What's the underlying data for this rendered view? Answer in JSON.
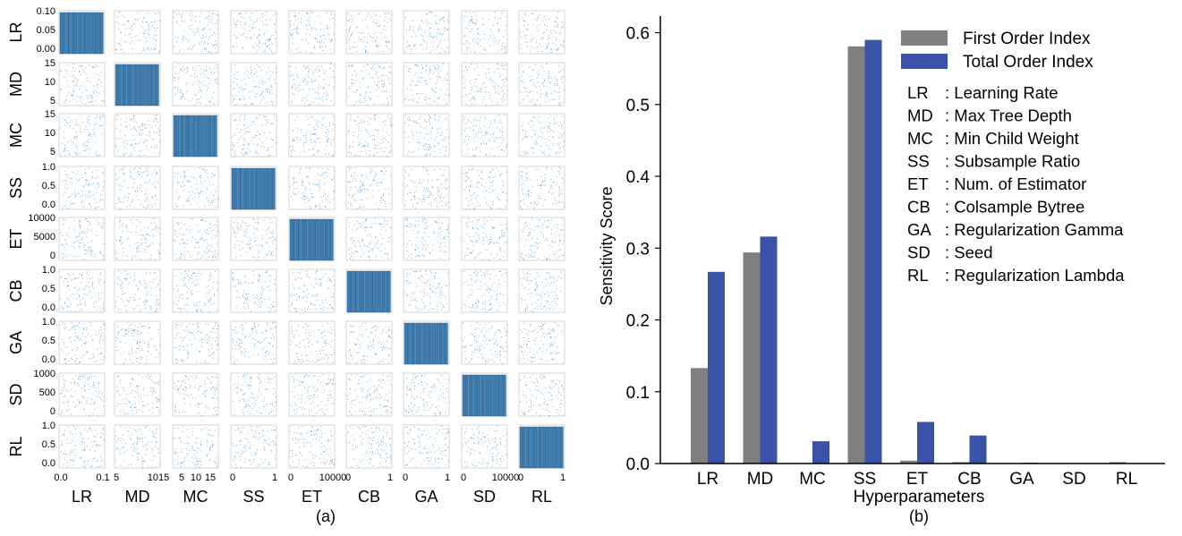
{
  "chart_data": [
    {
      "type": "scatter",
      "panel_label": "(a)",
      "variables": [
        "LR",
        "MD",
        "MC",
        "SS",
        "ET",
        "CB",
        "GA",
        "SD",
        "RL"
      ],
      "diagonal": "histogram",
      "point_color": "#1f77b4",
      "bar_color": "#3b7fb5",
      "y_tick_labels": {
        "LR": [
          "0.10",
          "0.05",
          "0.00"
        ],
        "MD": [
          "15",
          "10",
          "5"
        ],
        "MC": [
          "15",
          "10",
          "5"
        ],
        "SS": [
          "1.0",
          "0.5",
          "0.0"
        ],
        "ET": [
          "10000",
          "5000",
          "0"
        ],
        "CB": [
          "1.0",
          "0.5",
          "0.0"
        ],
        "GA": [
          "1.0",
          "0.5",
          "0.0"
        ],
        "SD": [
          "1000",
          "500",
          "0"
        ],
        "RL": [
          "1.0",
          "0.5",
          "0.0"
        ]
      },
      "x_tick_labels": {
        "LR": [
          "0.0",
          "0.1"
        ],
        "MD": [
          "5",
          "1015"
        ],
        "MC": [
          "5",
          "10",
          "15"
        ],
        "SS": [
          "0",
          "1"
        ],
        "ET": [
          "0",
          "10000"
        ],
        "CB": [
          "0",
          "1"
        ],
        "GA": [
          "0",
          "1"
        ],
        "SD": [
          "0",
          "10000"
        ],
        "RL": [
          "0",
          "1"
        ]
      },
      "ranges": {
        "LR": [
          0,
          0.1
        ],
        "MD": [
          1,
          18
        ],
        "MC": [
          1,
          18
        ],
        "SS": [
          0,
          1
        ],
        "ET": [
          0,
          10000
        ],
        "CB": [
          0,
          1
        ],
        "GA": [
          0,
          1
        ],
        "SD": [
          0,
          1000
        ],
        "RL": [
          0,
          1
        ]
      }
    },
    {
      "type": "bar",
      "panel_label": "(b)",
      "categories": [
        "LR",
        "MD",
        "MC",
        "SS",
        "ET",
        "CB",
        "GA",
        "SD",
        "RL"
      ],
      "series": [
        {
          "name": "First Order Index",
          "color": "#808080",
          "values": [
            0.133,
            0.294,
            0.0,
            0.581,
            0.004,
            0.002,
            0.0,
            0.0,
            0.002
          ]
        },
        {
          "name": "Total Order Index",
          "color": "#3a52a8",
          "values": [
            0.267,
            0.316,
            0.031,
            0.59,
            0.058,
            0.039,
            0.001,
            0.0,
            0.0
          ]
        }
      ],
      "xlabel": "Hyperparameters",
      "ylabel": "Sensitivity Score",
      "ylim": [
        0,
        0.62
      ],
      "yticks": [
        0.0,
        0.1,
        0.2,
        0.3,
        0.4,
        0.5,
        0.6
      ],
      "ytick_labels": [
        "0.0",
        "0.1",
        "0.2",
        "0.3",
        "0.4",
        "0.5",
        "0.6"
      ],
      "legend_position": "top-right",
      "abbreviations": [
        {
          "code": "LR",
          "meaning": ": Learning Rate"
        },
        {
          "code": "MD",
          "meaning": ": Max Tree Depth"
        },
        {
          "code": "MC",
          "meaning": ": Min Child Weight"
        },
        {
          "code": "SS",
          "meaning": ": Subsample Ratio"
        },
        {
          "code": "ET",
          "meaning": ": Num. of Estimator"
        },
        {
          "code": "CB",
          "meaning": ": Colsample Bytree"
        },
        {
          "code": "GA",
          "meaning": ": Regularization Gamma"
        },
        {
          "code": "SD",
          "meaning": ": Seed"
        },
        {
          "code": "RL",
          "meaning": ": Regularization Lambda"
        }
      ]
    }
  ]
}
